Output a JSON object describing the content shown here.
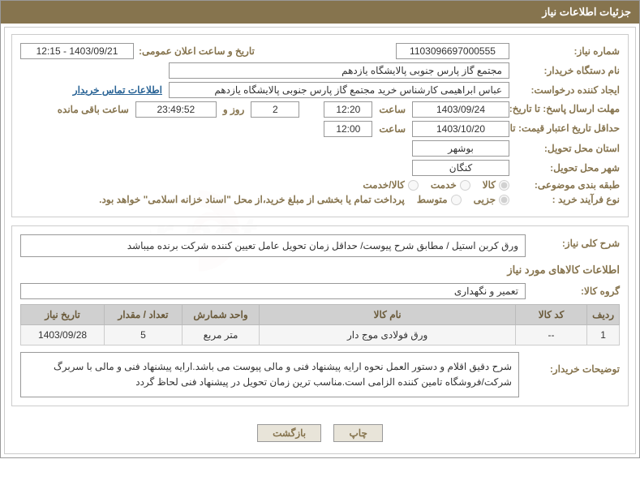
{
  "header": {
    "title": "جزئیات اطلاعات نیاز"
  },
  "form": {
    "need_no_label": "شماره نیاز:",
    "need_no": "1103096697000555",
    "announce_label": "تاریخ و ساعت اعلان عمومی:",
    "announce": "1403/09/21 - 12:15",
    "buyer_org_label": "نام دستگاه خریدار:",
    "buyer_org": "مجتمع گاز پارس جنوبی  پالایشگاه یازدهم",
    "requester_label": "ایجاد کننده درخواست:",
    "requester": "عباس ابراهیمی کارشناس خرید مجتمع گاز پارس جنوبی  پالایشگاه یازدهم",
    "contact_link": "اطلاعات تماس خریدار",
    "deadline_label": "مهلت ارسال پاسخ: تا تاریخ:",
    "deadline_date": "1403/09/24",
    "time_label1": "ساعت",
    "deadline_time": "12:20",
    "days": "2",
    "days_label": "روز و",
    "remain_time": "23:49:52",
    "remain_label": "ساعت باقی مانده",
    "validity_label": "حداقل تاریخ اعتبار قیمت: تا تاریخ:",
    "validity_date": "1403/10/20",
    "validity_time": "12:00",
    "delivery_province_label": "استان محل تحویل:",
    "delivery_province": "بوشهر",
    "delivery_city_label": "شهر محل تحویل:",
    "delivery_city": "کنگان",
    "subject_class_label": "طبقه بندی موضوعی:",
    "radio_goods": "کالا",
    "radio_service": "خدمت",
    "radio_goods_service": "کالا/خدمت",
    "process_type_label": "نوع فرآیند خرید :",
    "radio_partial": "جزیی",
    "radio_medium": "متوسط",
    "process_note": "پرداخت تمام یا بخشی از مبلغ خرید،از محل \"اسناد خزانه اسلامی\" خواهد بود."
  },
  "need": {
    "summary_label": "شرح کلی نیاز:",
    "summary": "ورق کربن استیل / مطابق شرح پیوست/ حداقل زمان تحویل عامل تعیین کننده شرکت برنده میباشد",
    "goods_section": "اطلاعات کالاهای مورد نیاز",
    "group_label": "گروه کالا:",
    "group": "تعمیر و نگهداری"
  },
  "table": {
    "headers": [
      "ردیف",
      "کد کالا",
      "نام کالا",
      "واحد شمارش",
      "تعداد / مقدار",
      "تاریخ نیاز"
    ],
    "rows": [
      [
        "1",
        "--",
        "ورق فولادی موج دار",
        "متر مربع",
        "5",
        "1403/09/28"
      ]
    ]
  },
  "explain": {
    "label": "توضیحات خریدار:",
    "text": "شرح دقیق اقلام و دستور العمل نحوه ارایه پیشنهاد فنی و مالی پیوست می باشد.ارایه پیشنهاد فنی و مالی با سربرگ شرکت/فروشگاه تامین کننده الزامی است.مناسب ترین زمان تحویل در پیشنهاد فنی لحاظ گردد"
  },
  "buttons": {
    "print": "چاپ",
    "back": "بازگشت"
  },
  "colors": {
    "header_bg": "#86744e",
    "label_color": "#86744e",
    "th_bg": "#d0d0d0",
    "td_bg": "#f5f5f5",
    "link": "#2a6496"
  }
}
